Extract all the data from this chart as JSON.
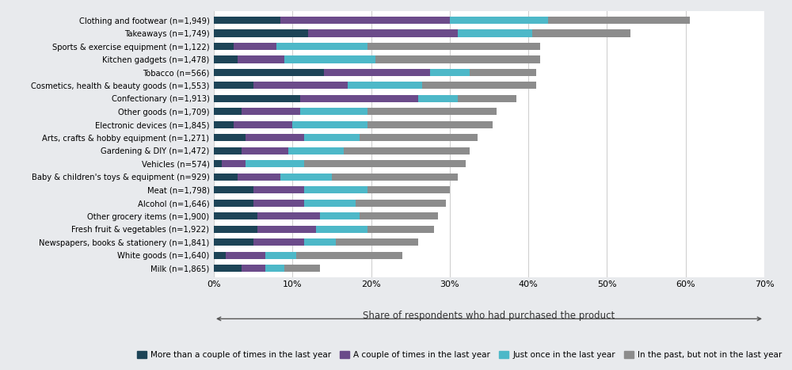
{
  "categories": [
    "Clothing and footwear (n=1,949)",
    "Takeaways (n=1,749)",
    "Sports & exercise equipment (n=1,122)",
    "Kitchen gadgets (n=1,478)",
    "Tobacco (n=566)",
    "Cosmetics, health & beauty goods (n=1,553)",
    "Confectionary (n=1,913)",
    "Other goods (n=1,709)",
    "Electronic devices (n=1,845)",
    "Arts, crafts & hobby equipment (n=1,271)",
    "Gardening & DIY (n=1,472)",
    "Vehicles (n=574)",
    "Baby & children's toys & equipment (n=929)",
    "Meat (n=1,798)",
    "Alcohol (n=1,646)",
    "Other grocery items (n=1,900)",
    "Fresh fruit & vegetables (n=1,922)",
    "Newspapers, books & stationery (n=1,841)",
    "White goods (n=1,640)",
    "Milk (n=1,865)"
  ],
  "data": [
    [
      8.5,
      21.5,
      12.5,
      18.0
    ],
    [
      12.0,
      19.0,
      9.5,
      12.5
    ],
    [
      2.5,
      5.5,
      11.5,
      22.0
    ],
    [
      3.0,
      6.0,
      11.5,
      21.0
    ],
    [
      14.0,
      13.5,
      5.0,
      8.5
    ],
    [
      5.0,
      12.0,
      9.5,
      14.5
    ],
    [
      11.0,
      15.0,
      5.0,
      7.5
    ],
    [
      3.5,
      7.5,
      8.5,
      16.5
    ],
    [
      2.5,
      7.5,
      9.5,
      16.0
    ],
    [
      4.0,
      7.5,
      7.0,
      15.0
    ],
    [
      3.5,
      6.0,
      7.0,
      16.0
    ],
    [
      1.0,
      3.0,
      7.5,
      20.5
    ],
    [
      3.0,
      5.5,
      6.5,
      16.0
    ],
    [
      5.0,
      6.5,
      8.0,
      10.5
    ],
    [
      5.0,
      6.5,
      6.5,
      11.5
    ],
    [
      5.5,
      8.0,
      5.0,
      10.0
    ],
    [
      5.5,
      7.5,
      6.5,
      8.5
    ],
    [
      5.0,
      6.5,
      4.0,
      10.5
    ],
    [
      1.5,
      5.0,
      4.0,
      13.5
    ],
    [
      3.5,
      3.0,
      2.5,
      4.5
    ]
  ],
  "colors": [
    "#1d4457",
    "#6b4b8a",
    "#4db8c8",
    "#8c8c8c"
  ],
  "legend_labels": [
    "More than a couple of times in the last year",
    "A couple of times in the last year",
    "Just once in the last year",
    "In the past, but not in the last year"
  ],
  "xlabel": "Share of respondents who had purchased the product",
  "xtick_labels": [
    "0%",
    "10%",
    "20%",
    "30%",
    "40%",
    "50%",
    "60%",
    "70%"
  ],
  "xtick_values": [
    0,
    10,
    20,
    30,
    40,
    50,
    60,
    70
  ],
  "fig_background_color": "#e8eaed",
  "plot_background_color": "#ffffff",
  "bar_height": 0.55
}
